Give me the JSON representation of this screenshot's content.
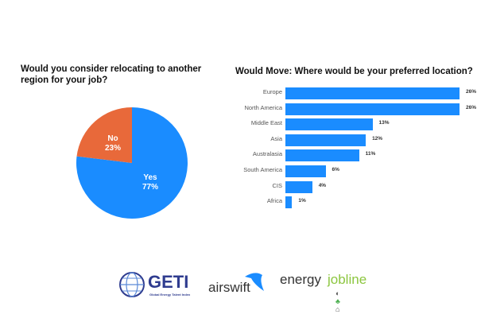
{
  "chart_data": [
    {
      "type": "pie",
      "title": "Would you consider relocating to another region for your job?",
      "categories": [
        "Yes",
        "No"
      ],
      "values": [
        77,
        23
      ],
      "colors": [
        "#1a8cff",
        "#e8693a"
      ]
    },
    {
      "type": "bar",
      "orientation": "horizontal",
      "title": "Would Move: Where would be your preferred location?",
      "categories": [
        "Europe",
        "North America",
        "Middle East",
        "Asia",
        "Australasia",
        "South America",
        "CIS",
        "Africa"
      ],
      "values": [
        26,
        26,
        13,
        12,
        11,
        6,
        4,
        1
      ],
      "value_labels": [
        "26%",
        "26%",
        "13%",
        "12%",
        "11%",
        "6%",
        "4%",
        "1%"
      ],
      "color": "#1a8cff",
      "xlim": [
        0,
        26
      ]
    }
  ],
  "pie": {
    "title": "Would you consider relocating to another region for your job?",
    "yes": {
      "label": "Yes",
      "pct": "77%"
    },
    "no": {
      "label": "No",
      "pct": "23%"
    }
  },
  "bars": {
    "title": "Would Move: Where would be your preferred location?",
    "items": [
      {
        "label": "Europe",
        "value": "26%"
      },
      {
        "label": "North America",
        "value": "26%"
      },
      {
        "label": "Middle East",
        "value": "13%"
      },
      {
        "label": "Asia",
        "value": "12%"
      },
      {
        "label": "Australasia",
        "value": "11%"
      },
      {
        "label": "South America",
        "value": "6%"
      },
      {
        "label": "CIS",
        "value": "4%"
      },
      {
        "label": "Africa",
        "value": "1%"
      }
    ]
  },
  "logos": {
    "geti": "GETI",
    "geti_sub": "Global Energy Talent Index",
    "airswift": "airswift",
    "energy": "energy",
    "jobline": "jobline"
  }
}
